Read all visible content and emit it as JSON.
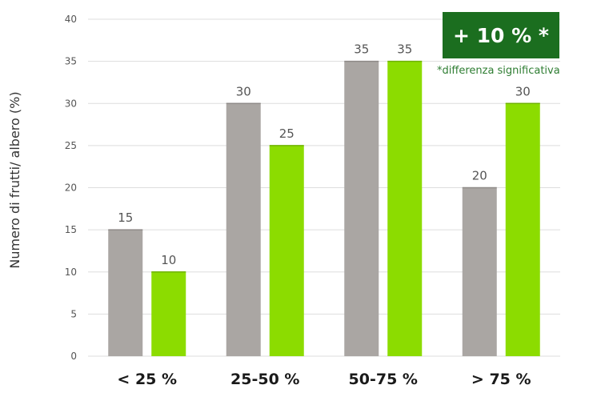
{
  "chart_data": {
    "type": "bar",
    "ylabel": "Numero di frutti/ albero (%)",
    "categories": [
      "< 25 %",
      "25-50 %",
      "50-75 %",
      "> 75 %"
    ],
    "series": [
      {
        "color": "#aaa6a3",
        "values": [
          15,
          30,
          35,
          20
        ]
      },
      {
        "color": "#8cdc00",
        "values": [
          10,
          25,
          35,
          30
        ]
      }
    ],
    "ylim": [
      0,
      40
    ],
    "yticks": [
      0,
      5,
      10,
      15,
      20,
      25,
      30,
      35,
      40
    ],
    "grid": true,
    "data_labels": true
  },
  "badge": {
    "text": "+ 10 % *",
    "color": "#1b6e1f"
  },
  "footnote": {
    "text": "*differenza significativa",
    "color": "#2e7d32"
  }
}
